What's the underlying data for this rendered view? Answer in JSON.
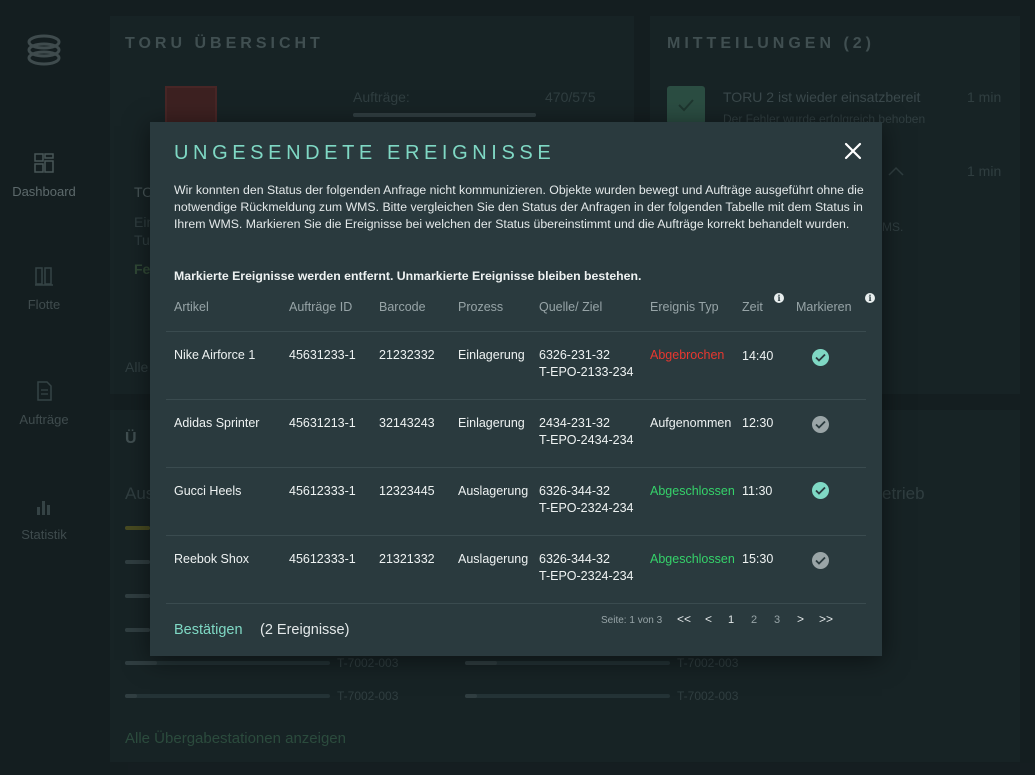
{
  "sidebar": {
    "items": [
      {
        "label": "Dashboard",
        "icon": "dashboard-icon"
      },
      {
        "label": "Flotte",
        "icon": "fleet-icon"
      },
      {
        "label": "Aufträge",
        "icon": "orders-icon"
      },
      {
        "label": "Statistik",
        "icon": "statistics-icon"
      }
    ]
  },
  "overview": {
    "title": "TORU ÜBERSICHT",
    "orders_label": "Aufträge:",
    "orders_value": "470/575",
    "toru_label": "TO",
    "line1": "Ein",
    "line2": "Tu",
    "status_short": "Fe",
    "link_short": "Alle"
  },
  "messages": {
    "title": "MITTEILUNGEN (2)",
    "items": [
      {
        "title": "TORU 2 ist wieder einsatzbereit",
        "sub": "Der Fehler wurde erfolgreich behoben",
        "time": "1 min"
      },
      {
        "time": "1 min",
        "sub": "MS."
      }
    ]
  },
  "stations": {
    "title_short": "Ü B",
    "label_left": "Aus",
    "label_right": "etrieb",
    "codes": [
      "T-7002-003",
      "T-7002-003",
      "T-7002-003",
      "T-7002-003"
    ],
    "show_all": "Alle Übergabestationen anzeigen"
  },
  "modal": {
    "title": "UNGESENDETE EREIGNISSE",
    "description": "Wir konnten den Status der folgenden Anfrage nicht kommunizieren. Objekte wurden bewegt und Aufträge ausgeführt ohne die notwendige Rückmeldung zum WMS. Bitte vergleichen Sie den Status der Anfragen in der folgenden Tabelle mit dem Status in Ihrem WMS. Markieren Sie die Ereignisse bei welchen der Status übereinstimmt und die Aufträge korrekt behandelt wurden.",
    "note": "Markierte Ereignisse werden entfernt. Unmarkierte Ereignisse bleiben bestehen.",
    "columns": [
      "Artikel",
      "Aufträge ID",
      "Barcode",
      "Prozess",
      "Quelle/ Ziel",
      "Ereignis Typ",
      "Zeit",
      "Markieren"
    ],
    "info_glyph": "i",
    "rows": [
      {
        "article": "Nike Airforce 1",
        "order_id": "45631233-1",
        "barcode": "21232332",
        "process": "Einlagerung",
        "source": "6326-231-32",
        "target": "T-EPO-2133-234",
        "event": "Abgebrochen",
        "event_status": "red",
        "time": "14:40",
        "marked": true
      },
      {
        "article": "Adidas Sprinter",
        "order_id": "45631213-1",
        "barcode": "32143243",
        "process": "Einlagerung",
        "source": "2434-231-32",
        "target": "T-EPO-2434-234",
        "event": "Aufgenommen",
        "event_status": "neutral",
        "time": "12:30",
        "marked": false
      },
      {
        "article": "Gucci Heels",
        "order_id": "45612333-1",
        "barcode": "12323445",
        "process": "Auslagerung",
        "source": "6326-344-32",
        "target": "T-EPO-2324-234",
        "event": "Abgeschlossen",
        "event_status": "green",
        "time": "11:30",
        "marked": true
      },
      {
        "article": "Reebok Shox",
        "order_id": "45612333-1",
        "barcode": "21321332",
        "process": "Auslagerung",
        "source": "6326-344-32",
        "target": "T-EPO-2324-234",
        "event": "Abgeschlossen",
        "event_status": "green",
        "time": "15:30",
        "marked": false
      }
    ],
    "confirm_label": "Bestätigen",
    "confirm_count": "(2 Ereignisse)",
    "pagination": {
      "label": "Seite: 1 von 3",
      "first": "<<",
      "prev": "<",
      "pages": [
        "1",
        "2",
        "3"
      ],
      "current": "1",
      "next": ">",
      "last": ">>"
    }
  },
  "colors": {
    "accent": "#7fd8c4",
    "red": "#e8372f",
    "green": "#35d26a",
    "background": "#1b2629",
    "modal": "#2a3a3e"
  }
}
